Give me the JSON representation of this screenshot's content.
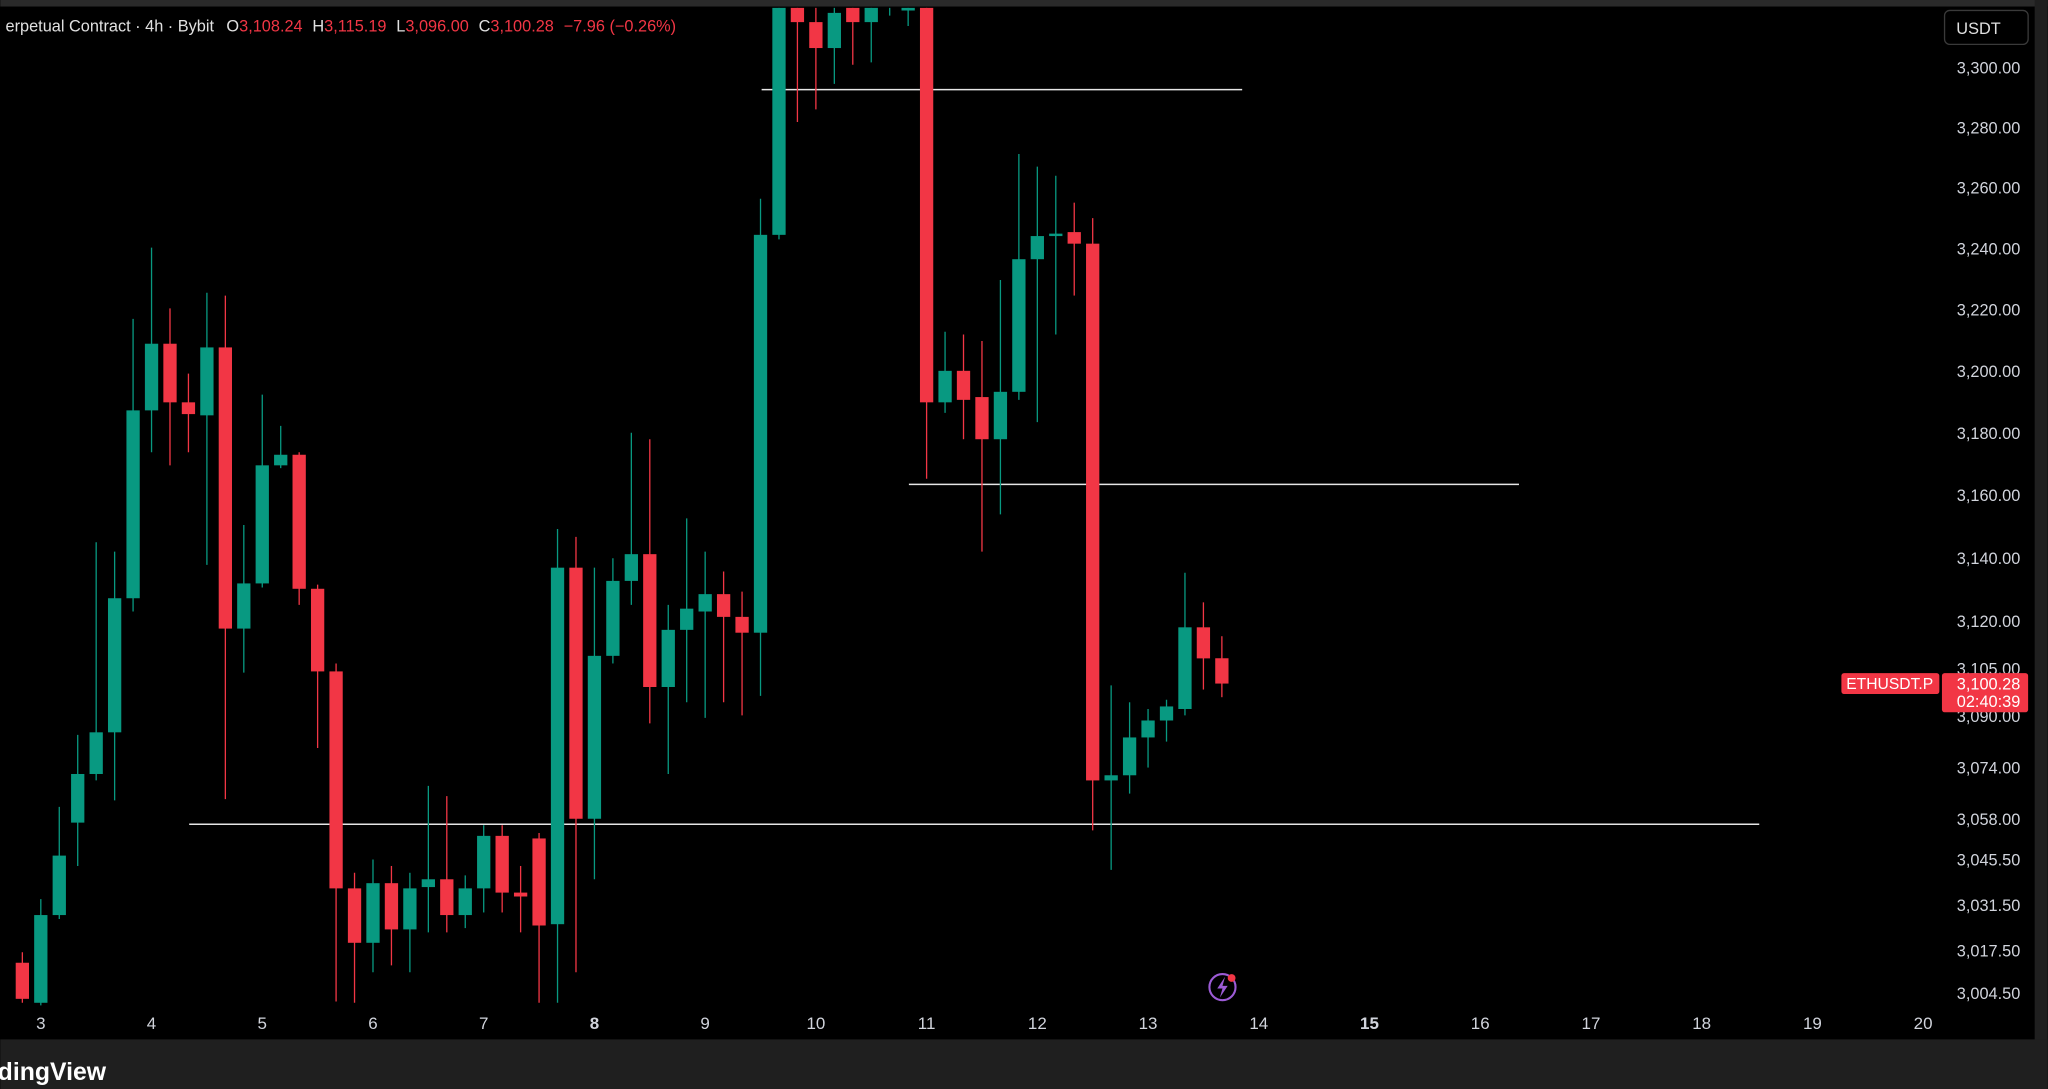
{
  "chart_data": {
    "type": "candlestick",
    "legend": {
      "symbol": "erpetual Contract · 4h · Bybit",
      "ohlc": [
        {
          "key": "O",
          "value": "3,108.24"
        },
        {
          "key": "H",
          "value": "3,115.19"
        },
        {
          "key": "L",
          "value": "3,096.00"
        },
        {
          "key": "C",
          "value": "3,100.28"
        }
      ],
      "change": "−7.96 (−0.26%)"
    },
    "currency": "USDT",
    "brand": "dingView",
    "x": [
      2.8333,
      3,
      3.1667,
      3.3333,
      3.5,
      3.6667,
      3.8333,
      4,
      4.1667,
      4.3333,
      4.5,
      4.6667,
      4.8333,
      5,
      5.1667,
      5.3333,
      5.5,
      5.6667,
      5.8333,
      6,
      6.1667,
      6.3333,
      6.5,
      6.6667,
      6.8333,
      7,
      7.1667,
      7.3333,
      7.5,
      7.6667,
      7.8333,
      8,
      8.1667,
      8.3333,
      8.5,
      8.6667,
      8.8333,
      9,
      9.1667,
      9.3333,
      9.5,
      9.6667,
      9.8333,
      10,
      10.1667,
      10.3333,
      10.5,
      10.6667,
      10.8333,
      11,
      11.1667,
      11.3333,
      11.5,
      11.6667,
      11.8333,
      12,
      12.1667,
      12.3333,
      12.5,
      12.6667,
      12.8333,
      13,
      13.1667,
      13.3333,
      13.5,
      13.6667
    ],
    "open": [
      3013.8,
      3001.6,
      3028.4,
      3056.9,
      3072.0,
      3085.0,
      3127.2,
      3187.3,
      3208.9,
      3189.9,
      3185.7,
      3207.7,
      3117.6,
      3131.9,
      3169.6,
      3173.0,
      3130.2,
      3104.1,
      3036.6,
      3019.9,
      3038.2,
      3024.0,
      3037.0,
      3039.4,
      3028.4,
      3036.6,
      3052.8,
      3035.3,
      3052.0,
      3025.6,
      3136.9,
      3058.1,
      3109.0,
      3132.7,
      3141.2,
      3099.2,
      3117.2,
      3123.0,
      3128.5,
      3121.3,
      3116.3,
      3244.5,
      3335,
      3315.2,
      3306.5,
      3325,
      3315.2,
      3325,
      3319.1,
      3330,
      3189.9,
      3200.1,
      3191.6,
      3178.0,
      3193.3,
      3236.5,
      3244.1,
      3245.4,
      3241.6,
      3070.0,
      3071.6,
      3083.4,
      3088.7,
      3092.3,
      3118.0,
      3108.24
    ],
    "high": [
      3017.0,
      3033.3,
      3061.8,
      3084.2,
      3145.0,
      3142.0,
      3217.0,
      3240.3,
      3220.4,
      3199.2,
      3225.5,
      3224.6,
      3150.5,
      3192.4,
      3182.3,
      3173.8,
      3131.5,
      3106.6,
      3041.4,
      3045.5,
      3043.5,
      3041.4,
      3068.3,
      3065.1,
      3040.6,
      3056.1,
      3056.1,
      3043.5,
      3053.7,
      3149.2,
      3146.7,
      3136.9,
      3139.9,
      3180.1,
      3178.0,
      3125.1,
      3152.6,
      3142.0,
      3135.7,
      3129.3,
      3256.4,
      3345,
      3345,
      3328,
      3325,
      3335,
      3332,
      3340,
      3338,
      3340,
      3212.8,
      3211.9,
      3209.8,
      3229.7,
      3271.2,
      3267.0,
      3264.0,
      3255.1,
      3250.0,
      3099.7,
      3094.4,
      3092.3,
      3095.2,
      3135.3,
      3125.9,
      3115.19
    ],
    "low": [
      3001.6,
      3000.8,
      3027.2,
      3043.5,
      3070.0,
      3063.8,
      3123.0,
      3173.8,
      3169.6,
      3173.8,
      3137.8,
      3064.2,
      3103.7,
      3130.6,
      3168.7,
      3125.1,
      3080.1,
      3002.0,
      3001.6,
      3010.9,
      3013.0,
      3010.9,
      3023.1,
      3023.1,
      3024.4,
      3029.2,
      3029.2,
      3023.1,
      3001.6,
      3001.6,
      3010.9,
      3039.4,
      3106.6,
      3125.1,
      3087.8,
      3072.0,
      3094.4,
      3089.5,
      3094.4,
      3090.3,
      3096.4,
      3243,
      3281.8,
      3286.0,
      3294.5,
      3300.9,
      3301.7,
      3317.4,
      3313.9,
      3165.3,
      3186.5,
      3178.0,
      3142.0,
      3153.9,
      3190.7,
      3183.5,
      3211.9,
      3224.6,
      3054.5,
      3042.3,
      3065.9,
      3074.0,
      3082.1,
      3090.3,
      3098.4,
      3096
    ],
    "close": [
      3002.8,
      3028.4,
      3046.7,
      3072.0,
      3085.0,
      3127.2,
      3187.3,
      3208.9,
      3189.9,
      3186.1,
      3207.7,
      3117.6,
      3131.9,
      3169.6,
      3173.0,
      3130.2,
      3104.1,
      3036.6,
      3019.9,
      3038.2,
      3024.0,
      3036.6,
      3039.4,
      3028.4,
      3036.6,
      3052.8,
      3035.3,
      3034.1,
      3025.2,
      3136.9,
      3058.1,
      3109.0,
      3132.7,
      3141.2,
      3099.2,
      3117.2,
      3123.9,
      3128.5,
      3121.3,
      3116.3,
      3244.5,
      3330,
      3315.2,
      3306.5,
      3318.3,
      3315.2,
      3324,
      3332,
      3325,
      3189.9,
      3200.1,
      3190.7,
      3178.0,
      3193.3,
      3236.5,
      3244.1,
      3244.9,
      3241.6,
      3070.0,
      3071.6,
      3083.4,
      3088.7,
      3093.1,
      3118.0,
      3108.2,
      3100.28
    ],
    "up_color": "#089981",
    "down_color": "#f23645",
    "log_scale": true,
    "grid": false,
    "xlim": [
      2.634,
      20.17
    ],
    "xticks": [
      3,
      4,
      5,
      6,
      7,
      8,
      9,
      10,
      11,
      12,
      13,
      14,
      15,
      16,
      17,
      18,
      19,
      20
    ],
    "emphasized_xticks": [
      8,
      15
    ],
    "ylim": [
      3000,
      3320
    ],
    "yticks": [
      {
        "value": 3300,
        "label": "3,300.00"
      },
      {
        "value": 3280,
        "label": "3,280.00"
      },
      {
        "value": 3260,
        "label": "3,260.00"
      },
      {
        "value": 3240,
        "label": "3,240.00"
      },
      {
        "value": 3220,
        "label": "3,220.00"
      },
      {
        "value": 3200,
        "label": "3,200.00"
      },
      {
        "value": 3180,
        "label": "3,180.00"
      },
      {
        "value": 3160,
        "label": "3,160.00"
      },
      {
        "value": 3140,
        "label": "3,140.00"
      },
      {
        "value": 3120,
        "label": "3,120.00"
      },
      {
        "value": 3105,
        "label": "3,105.00"
      },
      {
        "value": 3090,
        "label": "3,090.00"
      },
      {
        "value": 3074,
        "label": "3,074.00"
      },
      {
        "value": 3058,
        "label": "3,058.00"
      },
      {
        "value": 3045.5,
        "label": "3,045.50"
      },
      {
        "value": 3031.5,
        "label": "3,031.50"
      },
      {
        "value": 3017.5,
        "label": "3,017.50"
      },
      {
        "value": 3004.5,
        "label": "3,004.50"
      }
    ],
    "horizontal_lines": [
      {
        "value": 3292.6,
        "start": 9.51,
        "end": 13.85
      },
      {
        "value": 3163.5,
        "start": 10.84,
        "end": 16.35
      },
      {
        "value": 3056.4,
        "start": 4.34,
        "end": 18.52
      }
    ],
    "last_price": {
      "symbol": "ETHUSDT.P",
      "price": {
        "value": 3100.28,
        "label": "3,100.28"
      },
      "countdown": "02:40:39"
    }
  }
}
